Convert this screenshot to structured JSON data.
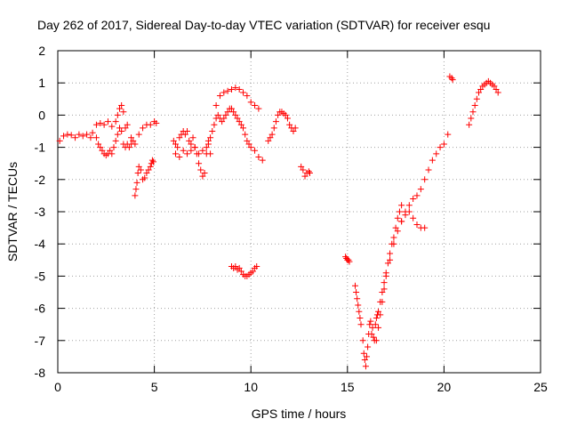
{
  "chart_data": {
    "type": "scatter",
    "title": "Day 262 of 2017, Sidereal Day-to-day VTEC variation (SDTVAR) for receiver esqu",
    "xlabel": "GPS time / hours",
    "ylabel": "SDTVAR / TECUs",
    "xlim": [
      0,
      25
    ],
    "ylim": [
      -8,
      2
    ],
    "xticks": [
      0,
      5,
      10,
      15,
      20,
      25
    ],
    "yticks": [
      -8,
      -7,
      -6,
      -5,
      -4,
      -3,
      -2,
      -1,
      0,
      1,
      2
    ],
    "grid": true,
    "marker": "plus",
    "color": "#ff0000",
    "series": [
      {
        "name": "SDTVAR",
        "x": [
          0.1,
          0.3,
          0.5,
          0.7,
          0.9,
          1.1,
          1.3,
          1.5,
          1.7,
          1.8,
          2.0,
          2.2,
          2.4,
          2.6,
          2.8,
          3.0,
          3.1,
          3.2,
          3.3,
          3.4,
          3.5,
          3.6,
          3.8,
          4.0,
          4.2,
          4.4,
          4.6,
          4.8,
          5.0,
          5.1,
          2.0,
          2.1,
          2.2,
          2.3,
          2.4,
          2.5,
          2.6,
          2.7,
          2.8,
          2.9,
          3.0,
          3.1,
          3.2,
          3.3,
          3.4,
          3.5,
          3.6,
          3.7,
          3.8,
          3.9,
          4.0,
          4.05,
          4.1,
          4.15,
          4.2,
          4.3,
          4.4,
          4.5,
          4.6,
          4.7,
          4.8,
          4.85,
          4.9,
          4.95,
          6.0,
          6.1,
          6.2,
          6.3,
          6.4,
          6.5,
          6.6,
          6.7,
          6.8,
          6.9,
          7.0,
          7.1,
          7.2,
          7.3,
          7.4,
          7.5,
          7.6,
          7.7,
          7.8,
          6.1,
          6.3,
          6.5,
          6.7,
          6.9,
          7.1,
          7.3,
          7.5,
          7.7,
          7.9,
          7.8,
          7.9,
          8.0,
          8.1,
          8.2,
          8.3,
          8.4,
          8.5,
          8.6,
          8.7,
          8.8,
          8.9,
          9.0,
          9.1,
          9.2,
          9.3,
          9.4,
          9.5,
          9.6,
          9.7,
          9.8,
          9.9,
          10.0,
          10.2,
          10.4,
          10.6,
          8.2,
          8.4,
          8.6,
          8.8,
          9.0,
          9.2,
          9.4,
          9.6,
          9.8,
          10.0,
          10.2,
          10.4,
          9.0,
          9.1,
          9.2,
          9.3,
          9.4,
          9.5,
          9.6,
          9.7,
          9.8,
          9.9,
          10.0,
          10.1,
          10.2,
          10.3,
          10.9,
          11.0,
          11.1,
          11.2,
          11.3,
          11.4,
          11.5,
          11.6,
          11.7,
          11.8,
          11.9,
          12.0,
          12.1,
          12.2,
          12.3,
          12.6,
          12.7,
          12.8,
          12.9,
          13.0,
          13.05,
          14.9,
          14.95,
          15.0,
          15.05,
          15.1,
          15.4,
          15.45,
          15.5,
          15.55,
          15.6,
          15.65,
          15.7,
          15.8,
          15.85,
          15.9,
          15.95,
          16.0,
          16.05,
          16.1,
          16.15,
          16.2,
          16.25,
          16.3,
          16.35,
          16.4,
          16.45,
          16.5,
          16.55,
          16.6,
          16.7,
          16.8,
          16.9,
          17.0,
          17.1,
          17.2,
          17.3,
          17.4,
          17.5,
          17.6,
          17.7,
          17.8,
          16.5,
          16.6,
          16.7,
          16.8,
          16.9,
          17.0,
          17.2,
          17.4,
          17.6,
          17.8,
          18.0,
          18.2,
          18.4,
          18.6,
          18.8,
          19.0,
          17.8,
          18.0,
          18.2,
          18.4,
          18.6,
          18.8,
          19.0,
          19.2,
          19.4,
          19.6,
          19.8,
          20.0,
          20.2,
          20.3,
          20.4,
          20.45,
          21.3,
          21.4,
          21.5,
          21.6,
          21.7,
          21.8,
          21.9,
          22.0,
          22.1,
          22.2,
          22.3,
          22.4,
          22.5,
          22.6,
          22.7,
          22.8
        ],
        "y": [
          -0.8,
          -0.65,
          -0.6,
          -0.62,
          -0.7,
          -0.6,
          -0.65,
          -0.6,
          -0.7,
          -0.55,
          -0.3,
          -0.25,
          -0.3,
          -0.2,
          -0.35,
          -0.2,
          0.0,
          0.2,
          0.3,
          0.1,
          -0.4,
          -0.3,
          -0.7,
          -0.9,
          -0.6,
          -0.4,
          -0.3,
          -0.3,
          -0.2,
          -0.25,
          -0.7,
          -0.9,
          -1.0,
          -1.1,
          -1.2,
          -1.25,
          -1.2,
          -1.1,
          -1.2,
          -1.0,
          -0.8,
          -0.6,
          -0.4,
          -0.5,
          -0.9,
          -1.0,
          -0.9,
          -1.0,
          -0.9,
          -0.8,
          -2.5,
          -2.3,
          -2.1,
          -1.8,
          -1.6,
          -1.7,
          -2.0,
          -1.95,
          -1.8,
          -1.7,
          -1.6,
          -1.5,
          -1.4,
          -1.45,
          -0.8,
          -0.9,
          -1.0,
          -0.7,
          -0.6,
          -0.5,
          -0.6,
          -0.5,
          -0.8,
          -0.9,
          -0.7,
          -1.0,
          -1.2,
          -1.5,
          -1.7,
          -1.9,
          -1.8,
          -1.2,
          -0.8,
          -1.2,
          -1.3,
          -1.1,
          -1.2,
          -1.1,
          -1.0,
          -1.2,
          -1.1,
          -1.0,
          -1.2,
          -0.9,
          -0.7,
          -0.5,
          -0.3,
          -0.1,
          0.0,
          -0.1,
          -0.2,
          -0.1,
          0.0,
          0.1,
          0.2,
          0.2,
          0.1,
          0.0,
          -0.1,
          -0.2,
          -0.3,
          -0.4,
          -0.6,
          -0.8,
          -0.9,
          -1.0,
          -1.1,
          -1.3,
          -1.4,
          0.3,
          0.6,
          0.7,
          0.75,
          0.8,
          0.85,
          0.8,
          0.7,
          0.6,
          0.4,
          0.3,
          0.2,
          -4.7,
          -4.75,
          -4.7,
          -4.8,
          -4.75,
          -4.85,
          -4.95,
          -5.0,
          -5.0,
          -4.95,
          -4.9,
          -4.85,
          -4.75,
          -4.7,
          -0.8,
          -0.7,
          -0.6,
          -0.4,
          -0.2,
          0.0,
          0.1,
          0.1,
          0.05,
          0.0,
          -0.1,
          -0.3,
          -0.4,
          -0.5,
          -0.4,
          -1.6,
          -1.7,
          -1.9,
          -1.8,
          -1.75,
          -1.8,
          -4.4,
          -4.45,
          -4.5,
          -4.5,
          -4.55,
          -5.3,
          -5.5,
          -5.7,
          -5.9,
          -6.1,
          -6.3,
          -6.5,
          -7.0,
          -7.4,
          -7.6,
          -7.8,
          -7.5,
          -7.2,
          -6.8,
          -6.5,
          -6.4,
          -6.8,
          -6.6,
          -6.9,
          -7.0,
          -6.5,
          -6.3,
          -6.2,
          -6.1,
          -5.8,
          -5.5,
          -5.2,
          -4.9,
          -4.6,
          -4.3,
          -4.0,
          -3.8,
          -3.5,
          -3.2,
          -3.0,
          -2.8,
          -7.0,
          -6.6,
          -6.2,
          -5.8,
          -5.4,
          -5.0,
          -4.5,
          -4.0,
          -3.6,
          -3.3,
          -3.1,
          -3.0,
          -3.2,
          -3.4,
          -3.5,
          -3.5,
          -3.3,
          -3.0,
          -2.8,
          -2.6,
          -2.5,
          -2.3,
          -2.0,
          -1.7,
          -1.4,
          -1.2,
          -1.0,
          -0.9,
          -0.6,
          1.2,
          1.15,
          1.1,
          -0.3,
          -0.1,
          0.1,
          0.3,
          0.5,
          0.7,
          0.8,
          0.9,
          0.95,
          1.0,
          1.05,
          1.0,
          0.95,
          0.9,
          0.8,
          0.7
        ]
      }
    ]
  }
}
